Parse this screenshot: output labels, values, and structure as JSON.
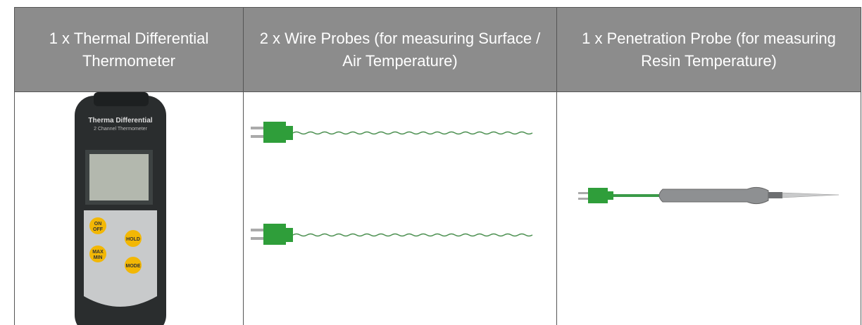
{
  "table": {
    "header": [
      "1 x Thermal Differential Thermometer",
      "2 x Wire Probes (for measuring Surface / Air Temperature)",
      "1 x Penetration Probe (for measuring Resin Temperature)"
    ]
  },
  "device": {
    "brand": "Therma Differential",
    "model": "2 Channel Thermometer",
    "buttons": [
      [
        "ON",
        "OFF"
      ],
      [
        "HOLD"
      ],
      [
        "MAX",
        "MIN"
      ],
      [
        "MODE"
      ]
    ]
  }
}
